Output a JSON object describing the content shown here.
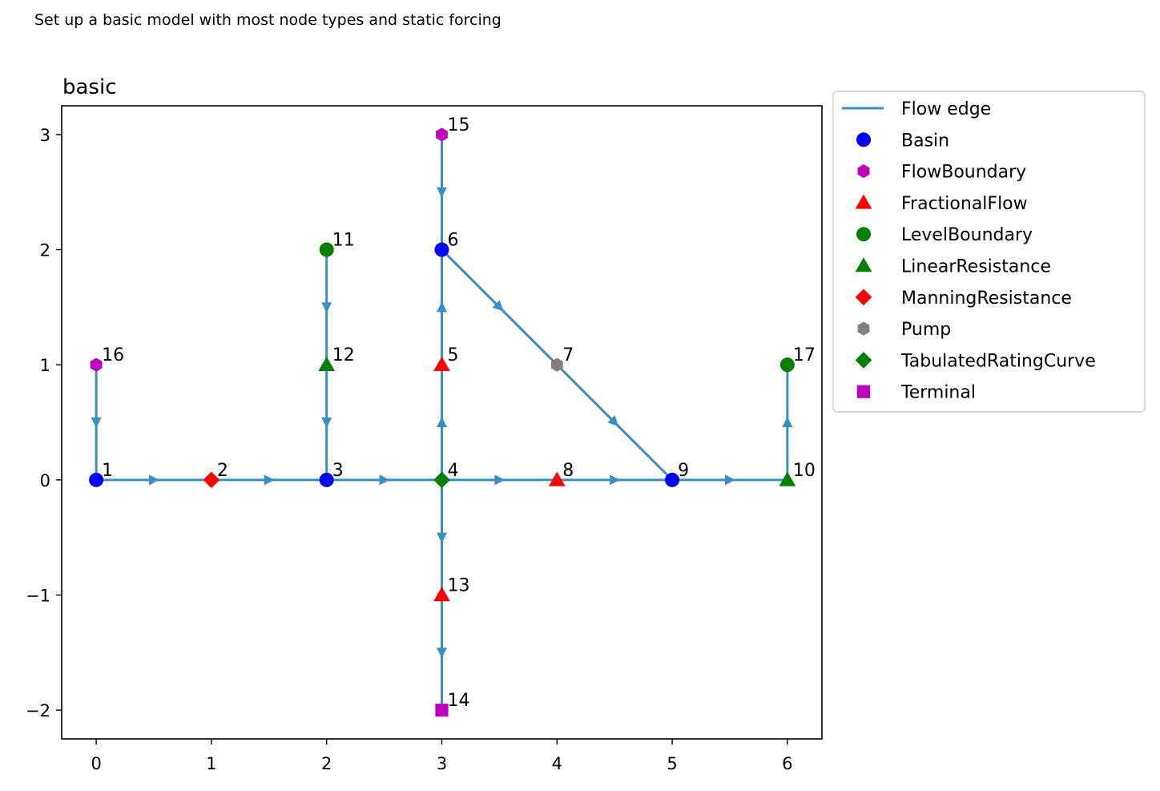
{
  "page_title": "Set up a basic model with most node types and static forcing",
  "chart_data": {
    "type": "network",
    "title": "basic",
    "xlabel": "",
    "ylabel": "",
    "xlim": [
      -0.3,
      6.3
    ],
    "ylim": [
      -2.25,
      3.25
    ],
    "xticks": [
      0,
      1,
      2,
      3,
      4,
      5,
      6
    ],
    "yticks": [
      -2,
      -1,
      0,
      1,
      2,
      3
    ],
    "grid": false,
    "legend_position": "outside-right-top",
    "edge_color": "#3a8fc2",
    "edge_legend_label": "Flow edge",
    "node_types": [
      {
        "name": "Basin",
        "marker": "circle",
        "color": "#0000ff"
      },
      {
        "name": "FlowBoundary",
        "marker": "hexagon",
        "color": "#c000c0"
      },
      {
        "name": "FractionalFlow",
        "marker": "triangle",
        "color": "#ff0000"
      },
      {
        "name": "LevelBoundary",
        "marker": "circle",
        "color": "#008000"
      },
      {
        "name": "LinearResistance",
        "marker": "triangle",
        "color": "#008000"
      },
      {
        "name": "ManningResistance",
        "marker": "diamond",
        "color": "#ff0000"
      },
      {
        "name": "Pump",
        "marker": "hexagon",
        "color": "#808080"
      },
      {
        "name": "TabulatedRatingCurve",
        "marker": "diamond",
        "color": "#008000"
      },
      {
        "name": "Terminal",
        "marker": "square",
        "color": "#c000c0"
      }
    ],
    "nodes": [
      {
        "id": "1",
        "type": "Basin",
        "x": 0,
        "y": 0
      },
      {
        "id": "2",
        "type": "ManningResistance",
        "x": 1,
        "y": 0
      },
      {
        "id": "3",
        "type": "Basin",
        "x": 2,
        "y": 0
      },
      {
        "id": "4",
        "type": "TabulatedRatingCurve",
        "x": 3,
        "y": 0
      },
      {
        "id": "5",
        "type": "FractionalFlow",
        "x": 3,
        "y": 1
      },
      {
        "id": "6",
        "type": "Basin",
        "x": 3,
        "y": 2
      },
      {
        "id": "7",
        "type": "Pump",
        "x": 4,
        "y": 1
      },
      {
        "id": "8",
        "type": "FractionalFlow",
        "x": 4,
        "y": 0
      },
      {
        "id": "9",
        "type": "Basin",
        "x": 5,
        "y": 0
      },
      {
        "id": "10",
        "type": "LinearResistance",
        "x": 6,
        "y": 0
      },
      {
        "id": "11",
        "type": "LevelBoundary",
        "x": 2,
        "y": 2
      },
      {
        "id": "12",
        "type": "LinearResistance",
        "x": 2,
        "y": 1
      },
      {
        "id": "13",
        "type": "FractionalFlow",
        "x": 3,
        "y": -1
      },
      {
        "id": "14",
        "type": "Terminal",
        "x": 3,
        "y": -2
      },
      {
        "id": "15",
        "type": "FlowBoundary",
        "x": 3,
        "y": 3
      },
      {
        "id": "16",
        "type": "FlowBoundary",
        "x": 0,
        "y": 1
      },
      {
        "id": "17",
        "type": "LevelBoundary",
        "x": 6,
        "y": 1
      }
    ],
    "edges": [
      {
        "from": "1",
        "to": "2"
      },
      {
        "from": "2",
        "to": "3"
      },
      {
        "from": "3",
        "to": "4"
      },
      {
        "from": "4",
        "to": "5"
      },
      {
        "from": "5",
        "to": "6"
      },
      {
        "from": "6",
        "to": "7"
      },
      {
        "from": "7",
        "to": "9"
      },
      {
        "from": "4",
        "to": "8"
      },
      {
        "from": "8",
        "to": "9"
      },
      {
        "from": "9",
        "to": "10"
      },
      {
        "from": "10",
        "to": "17"
      },
      {
        "from": "11",
        "to": "12"
      },
      {
        "from": "12",
        "to": "3"
      },
      {
        "from": "4",
        "to": "13"
      },
      {
        "from": "13",
        "to": "14"
      },
      {
        "from": "15",
        "to": "6"
      },
      {
        "from": "16",
        "to": "1"
      }
    ]
  }
}
